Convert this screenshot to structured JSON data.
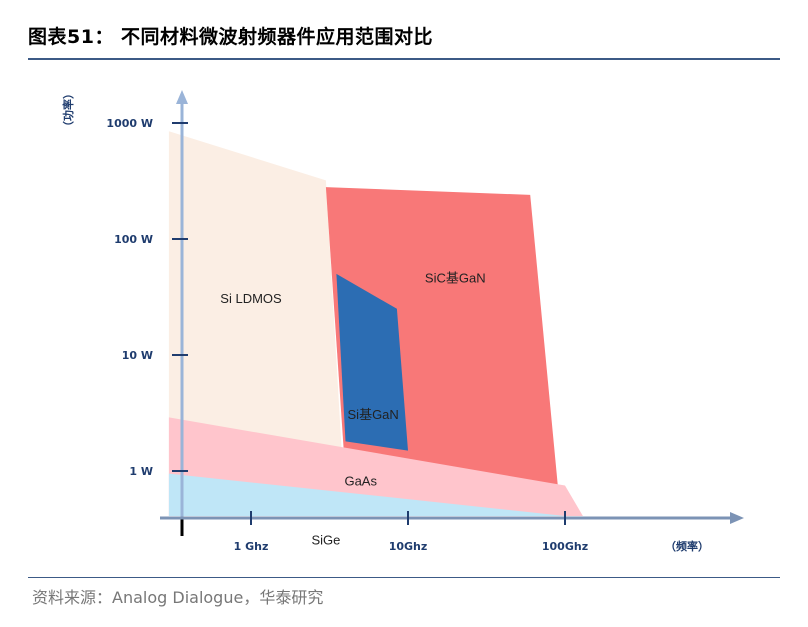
{
  "figure_title": "图表51：  不同材料微波射频器件应用范围对比",
  "source_text": "资料来源：Analog Dialogue，华泰研究",
  "colors": {
    "rule": "#3c5a86",
    "axis": "#9ab4d8",
    "tick_text": "#1f3c6e"
  },
  "chart_data": {
    "type": "area",
    "title": "不同材料微波射频器件应用范围对比",
    "xlabel": "（频率）",
    "ylabel": "（功率）",
    "x_scale": "log",
    "y_scale": "log",
    "x_ticks": [
      {
        "value": 1,
        "label": "1 Ghz"
      },
      {
        "value": 10,
        "label": "10Ghz"
      },
      {
        "value": 100,
        "label": "100Ghz"
      }
    ],
    "y_ticks": [
      {
        "value": 1,
        "label": "1 W"
      },
      {
        "value": 10,
        "label": "10 W"
      },
      {
        "value": 100,
        "label": "100 W"
      },
      {
        "value": 1000,
        "label": "1000 W"
      }
    ],
    "regions": [
      {
        "label": "Si LDMOS",
        "color": "#fbeee4",
        "polygon": [
          [
            0.3,
            0.25
          ],
          [
            0.3,
            850
          ],
          [
            3,
            320
          ],
          [
            4,
            0.15
          ],
          [
            0.3,
            0.15
          ]
        ],
        "label_at": [
          1,
          30
        ]
      },
      {
        "label": "SiC基GaN",
        "color": "#f87878",
        "polygon": [
          [
            3,
            280
          ],
          [
            60,
            240
          ],
          [
            90,
            0.75
          ],
          [
            4,
            0.9
          ]
        ],
        "label_at": [
          20,
          45
        ]
      },
      {
        "label": "Si基GaN",
        "color": "#2c6db3",
        "polygon": [
          [
            3.5,
            50
          ],
          [
            8.5,
            25
          ],
          [
            10,
            1.5
          ],
          [
            4,
            1.8
          ]
        ],
        "label_at": [
          6,
          3
        ]
      },
      {
        "label": "GaAs",
        "color": "#ffc5cc",
        "polygon": [
          [
            0.3,
            2.9
          ],
          [
            100,
            0.75
          ],
          [
            130,
            0.01
          ],
          [
            0.3,
            0.01
          ]
        ],
        "label_at": [
          5,
          0.8
        ]
      },
      {
        "label": "SiGe",
        "color": "#bfe6f7",
        "polygon": [
          [
            0.3,
            0.95
          ],
          [
            100,
            0.38
          ],
          [
            130,
            0.01
          ],
          [
            0.3,
            0.01
          ]
        ],
        "label_at": [
          3,
          0.25
        ]
      }
    ]
  }
}
